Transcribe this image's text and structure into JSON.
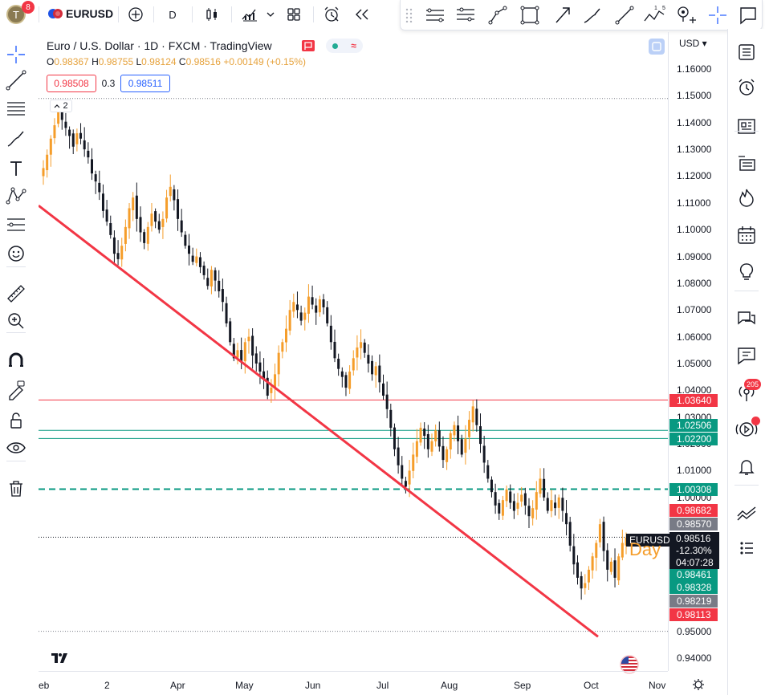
{
  "topbar": {
    "avatar_letter": "T",
    "avatar_badge": "8",
    "symbol": "EURUSD",
    "interval": "D"
  },
  "legend": {
    "title": "Euro / U.S. Dollar · 1D · FXCM · TradingView",
    "o_label": "O",
    "o_value": "0.98367",
    "h_label": "H",
    "h_value": "0.98755",
    "l_label": "L",
    "l_value": "0.98124",
    "c_label": "C",
    "c_value": "0.98516",
    "change": "+0.00149 (+0.15%)",
    "bid": "0.98508",
    "spread": "0.3",
    "ask": "0.98511",
    "study_count": "2"
  },
  "price_axis": {
    "currency": "USD",
    "labels": [
      "1.16000",
      "1.15000",
      "1.14000",
      "1.13000",
      "1.12000",
      "1.11000",
      "1.10000",
      "1.09000",
      "1.08000",
      "1.07000",
      "1.06000",
      "1.05000",
      "1.04000",
      "1.03000",
      "1.02000",
      "1.01000",
      "1.00000",
      "0.95000",
      "0.94000"
    ],
    "tags": [
      {
        "text": "1.03640",
        "color": "#f23645"
      },
      {
        "text": "1.02506",
        "color": "#089981"
      },
      {
        "text": "1.02200",
        "color": "#089981"
      },
      {
        "text": "1.00308",
        "color": "#089981"
      },
      {
        "text": "0.98682",
        "color": "#f23645"
      },
      {
        "text": "0.98570",
        "color": "#787b86"
      },
      {
        "text": "0.98461",
        "color": "#089981"
      },
      {
        "text": "0.98328",
        "color": "#089981"
      },
      {
        "text": "0.98219",
        "color": "#787b86"
      },
      {
        "text": "0.98113",
        "color": "#f23645"
      }
    ],
    "current": {
      "symbol": "EURUSD",
      "price": "0.98516",
      "change": "-12.30%",
      "countdown": "04:07:28"
    }
  },
  "time_axis": [
    "eb",
    "2",
    "Apr",
    "May",
    "Jun",
    "Jul",
    "Aug",
    "Sep",
    "Oct",
    "Nov"
  ],
  "annotation_text": "Day",
  "notification_count": "205",
  "colors": {
    "bull": "#f59d2a",
    "bear": "#131722",
    "trendline": "#f23645",
    "accent": "#2962ff",
    "green": "#089981"
  },
  "icons": {
    "left": [
      "crosshair-icon",
      "trendline-icon",
      "fib-icon",
      "brush-icon",
      "text-icon",
      "pattern-icon",
      "forecast-icon",
      "emoji-icon",
      "ruler-icon",
      "zoom-icon",
      "magnet-icon",
      "lock-drawing-icon",
      "lock-icon",
      "eye-icon",
      "trash-icon"
    ],
    "right": [
      "watchlist-icon",
      "alarm-icon",
      "news-icon",
      "datawindow-icon",
      "hotlist-icon",
      "calendar-icon",
      "ideas-icon",
      "chat-icon",
      "messages-icon",
      "streams-icon",
      "broadcast-icon",
      "alerts-icon",
      "trend-icon",
      "more-icon"
    ]
  },
  "chart_data": {
    "type": "candlestick",
    "title": "",
    "xlabel": "",
    "ylabel": "",
    "ylim": [
      0.935,
      1.165
    ],
    "trendline": {
      "from": {
        "x": "Feb",
        "y": 1.109
      },
      "to": {
        "x": "Oct",
        "y": 0.948
      }
    },
    "horizontal_lines": [
      {
        "y": 1.149,
        "style": "dotted",
        "color": "#787b86"
      },
      {
        "y": 1.0364,
        "style": "solid",
        "color": "#f23645"
      },
      {
        "y": 1.02506,
        "style": "solid",
        "color": "#089981"
      },
      {
        "y": 1.022,
        "style": "solid",
        "color": "#089981"
      },
      {
        "y": 1.00308,
        "style": "dashed",
        "color": "#089981"
      },
      {
        "y": 0.98516,
        "style": "dotted",
        "color": "#131722"
      },
      {
        "y": 0.95,
        "style": "dotted",
        "color": "#787b86"
      }
    ],
    "path": [
      1.123,
      1.128,
      1.134,
      1.139,
      1.144,
      1.141,
      1.138,
      1.135,
      1.131,
      1.136,
      1.134,
      1.13,
      1.127,
      1.121,
      1.118,
      1.114,
      1.107,
      1.103,
      1.098,
      1.091,
      1.089,
      1.094,
      1.101,
      1.108,
      1.112,
      1.104,
      1.099,
      1.095,
      1.101,
      1.106,
      1.103,
      1.1,
      1.104,
      1.112,
      1.116,
      1.111,
      1.104,
      1.099,
      1.094,
      1.091,
      1.088,
      1.09,
      1.086,
      1.083,
      1.079,
      1.085,
      1.081,
      1.077,
      1.073,
      1.065,
      1.058,
      1.052,
      1.055,
      1.051,
      1.058,
      1.06,
      1.053,
      1.05,
      1.047,
      1.044,
      1.038,
      1.041,
      1.046,
      1.054,
      1.058,
      1.063,
      1.07,
      1.073,
      1.07,
      1.066,
      1.069,
      1.075,
      1.072,
      1.069,
      1.074,
      1.071,
      1.065,
      1.058,
      1.052,
      1.048,
      1.045,
      1.041,
      1.047,
      1.052,
      1.056,
      1.058,
      1.054,
      1.05,
      1.046,
      1.049,
      1.043,
      1.038,
      1.033,
      1.026,
      1.018,
      1.012,
      1.007,
      1.004,
      1.01,
      1.016,
      1.021,
      1.026,
      1.023,
      1.018,
      1.021,
      1.025,
      1.019,
      1.014,
      1.018,
      1.024,
      1.027,
      1.021,
      1.016,
      1.022,
      1.029,
      1.034,
      1.027,
      1.02,
      1.013,
      1.007,
      1.002,
      0.997,
      0.994,
      0.999,
      1.003,
      0.998,
      0.995,
      0.998,
      1.001,
      0.997,
      0.993,
      0.996,
      1.002,
      1.007,
      1.0,
      0.995,
      0.999,
      0.996,
      1.0,
      0.995,
      0.99,
      0.982,
      0.975,
      0.97,
      0.966,
      0.968,
      0.973,
      0.978,
      0.983,
      0.99,
      0.98,
      0.973,
      0.976,
      0.97,
      0.978,
      0.983,
      0.985
    ]
  }
}
